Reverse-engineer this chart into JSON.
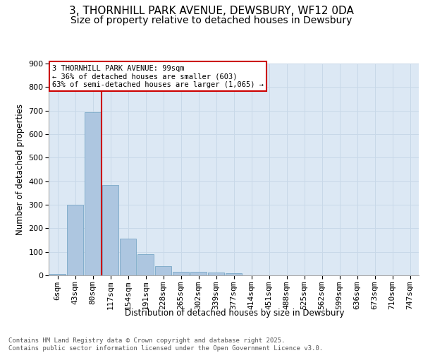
{
  "title_line1": "3, THORNHILL PARK AVENUE, DEWSBURY, WF12 0DA",
  "title_line2": "Size of property relative to detached houses in Dewsbury",
  "xlabel": "Distribution of detached houses by size in Dewsbury",
  "ylabel": "Number of detached properties",
  "categories": [
    "6sqm",
    "43sqm",
    "80sqm",
    "117sqm",
    "154sqm",
    "191sqm",
    "228sqm",
    "265sqm",
    "302sqm",
    "339sqm",
    "377sqm",
    "414sqm",
    "451sqm",
    "488sqm",
    "525sqm",
    "562sqm",
    "599sqm",
    "636sqm",
    "673sqm",
    "710sqm",
    "747sqm"
  ],
  "values": [
    7,
    300,
    693,
    385,
    157,
    91,
    40,
    15,
    15,
    11,
    8,
    0,
    0,
    0,
    0,
    0,
    0,
    0,
    0,
    0,
    0
  ],
  "bar_color": "#adc6e0",
  "bar_edge_color": "#6a9ec0",
  "vline_x": 2.5,
  "vline_color": "#cc0000",
  "annotation_text": "3 THORNHILL PARK AVENUE: 99sqm\n← 36% of detached houses are smaller (603)\n63% of semi-detached houses are larger (1,065) →",
  "annotation_box_edgecolor": "#cc0000",
  "annotation_box_facecolor": "white",
  "ylim": [
    0,
    900
  ],
  "yticks": [
    0,
    100,
    200,
    300,
    400,
    500,
    600,
    700,
    800,
    900
  ],
  "grid_color": "#c8d8e8",
  "background_color": "#dce8f4",
  "footer_text": "Contains HM Land Registry data © Crown copyright and database right 2025.\nContains public sector information licensed under the Open Government Licence v3.0.",
  "title_fontsize": 11,
  "subtitle_fontsize": 10,
  "axis_label_fontsize": 8.5,
  "tick_fontsize": 8,
  "annotation_fontsize": 7.5,
  "footer_fontsize": 6.5
}
